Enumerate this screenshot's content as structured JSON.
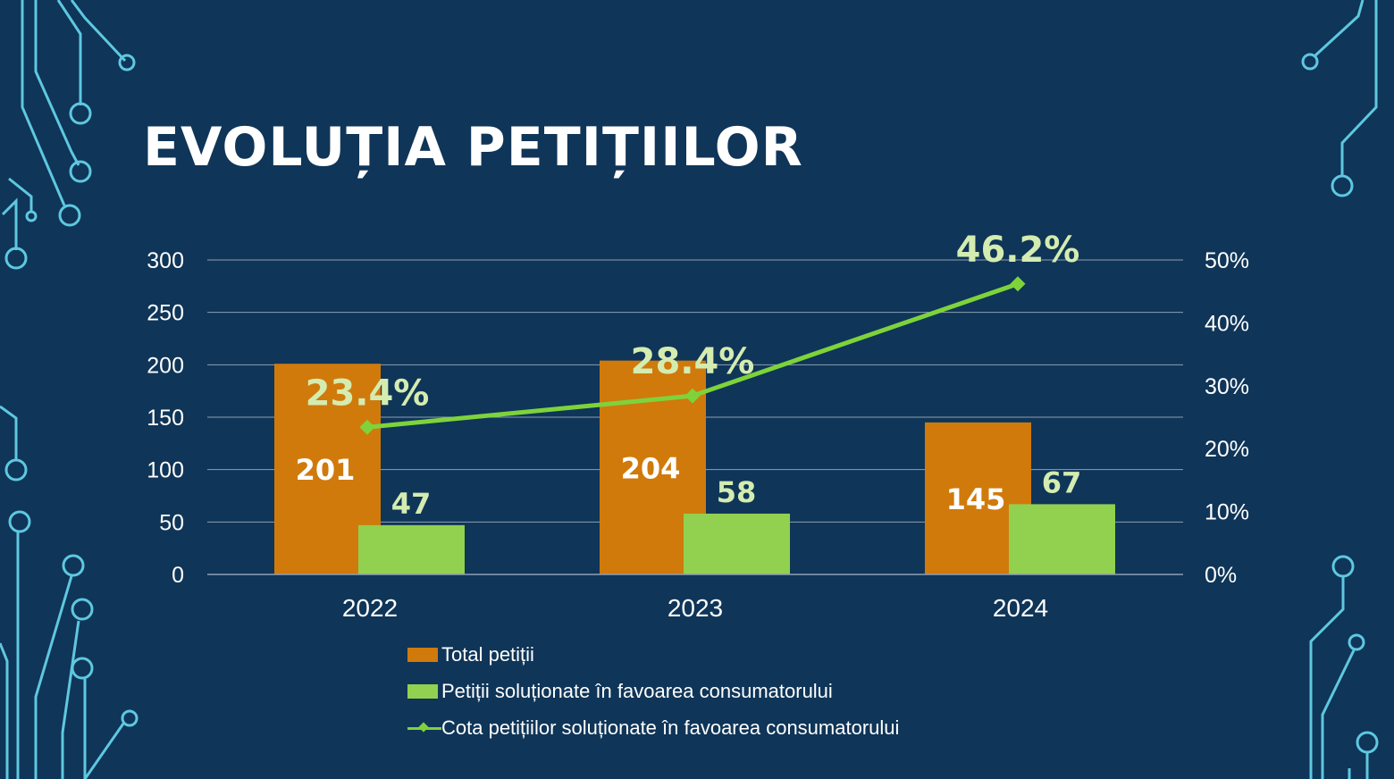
{
  "slide": {
    "title": "EVOLUȚIA PETIȚIILOR"
  },
  "colors": {
    "background": "#0f3558",
    "total_bar": "#d07a0b",
    "solved_bar": "#92d050",
    "share_line": "#7ed33b",
    "share_label": "#d4ecb0",
    "circuit": "#5ec8e0",
    "grid": "#8fa0b4",
    "text": "#ffffff"
  },
  "chart_data": {
    "type": "bar",
    "categories": [
      "2022",
      "2023",
      "2024"
    ],
    "series": [
      {
        "name": "Total petiții",
        "kind": "bar",
        "axis": "left",
        "values": [
          201,
          204,
          145
        ],
        "labels": [
          "201",
          "204",
          "145"
        ]
      },
      {
        "name": "Petiții soluționate în favoarea consumatorului",
        "kind": "bar",
        "axis": "left",
        "values": [
          47,
          58,
          67
        ],
        "labels": [
          "47",
          "58",
          "67"
        ]
      },
      {
        "name": "Cota petițiilor soluționate în favoarea consumatorului",
        "kind": "line",
        "axis": "right",
        "values": [
          23.4,
          28.4,
          46.2
        ],
        "labels": [
          "23.4%",
          "28.4%",
          "46.2%"
        ]
      }
    ],
    "ylim": [
      0,
      300
    ],
    "yticks": [
      "0",
      "50",
      "100",
      "150",
      "200",
      "250",
      "300"
    ],
    "y2lim": [
      0,
      50
    ],
    "y2ticks": [
      "0%",
      "10%",
      "20%",
      "30%",
      "40%",
      "50%"
    ],
    "grid": true,
    "legend_position": "bottom"
  }
}
